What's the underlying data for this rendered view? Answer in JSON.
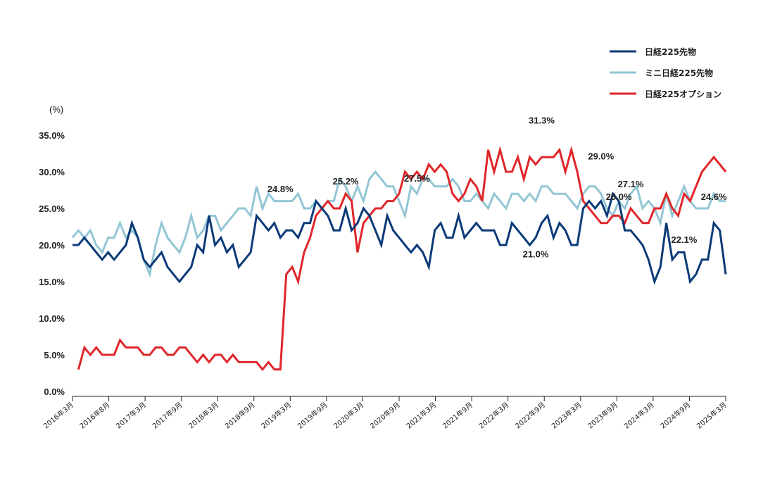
{
  "chart_data": {
    "type": "line",
    "ylabel": "(%)",
    "ylim": [
      0,
      35
    ],
    "y_ticks": [
      "0.0%",
      "5.0%",
      "10.0%",
      "15.0%",
      "20.0%",
      "25.0%",
      "30.0%",
      "35.0%"
    ],
    "x_ticks": [
      "2016年3月",
      "2016年8月",
      "2017年3月",
      "2017年9月",
      "2018年3月",
      "2018年9月",
      "2019年3月",
      "2019年9月",
      "2020年3月",
      "2020年9月",
      "2021年3月",
      "2021年9月",
      "2022年3月",
      "2022年9月",
      "2023年3月",
      "2023年9月",
      "2024年3月",
      "2024年9月",
      "2025年3月"
    ],
    "legend_position": "top-right",
    "grid": false,
    "series": [
      {
        "name": "日経225先物",
        "color": "#0b3a78",
        "values": [
          20,
          20,
          21,
          20,
          19,
          18,
          19,
          18,
          19,
          20,
          23,
          21,
          18,
          17,
          18,
          19,
          17,
          16,
          15,
          16,
          17,
          20,
          19,
          24,
          20,
          21,
          19,
          20,
          17,
          18,
          19,
          24,
          23,
          22,
          23,
          21,
          22,
          22,
          21,
          23,
          23,
          26,
          25,
          24,
          22,
          22,
          25,
          22,
          23,
          25,
          24,
          22,
          20,
          24,
          22,
          21,
          20,
          19,
          20,
          19,
          17,
          22,
          23,
          21,
          21,
          24,
          21,
          22,
          23,
          22,
          22,
          22,
          20,
          20,
          23,
          22,
          21,
          20,
          21,
          23,
          24,
          21,
          23,
          22,
          20,
          20,
          25,
          26,
          25,
          26,
          24,
          27,
          26,
          22,
          22,
          21,
          20,
          18,
          15,
          17,
          23,
          18,
          19,
          19,
          15,
          16,
          18,
          18,
          23,
          22,
          16
        ]
      },
      {
        "name": "ミニ日経225先物",
        "color": "#93c6d4",
        "values": [
          21,
          22,
          21,
          22,
          20,
          19,
          21,
          21,
          23,
          21,
          22,
          21,
          18,
          16,
          20,
          23,
          21,
          20,
          19,
          21,
          24,
          21,
          22,
          24,
          24,
          22,
          23,
          24,
          25,
          25,
          24,
          28,
          25,
          27,
          26,
          26,
          26,
          26,
          27,
          25,
          25,
          26,
          25,
          26,
          26,
          29,
          28,
          26,
          28,
          26,
          29,
          30,
          29,
          28,
          28,
          26,
          24,
          28,
          27,
          29,
          29,
          28,
          28,
          28,
          29,
          28,
          26,
          26,
          27,
          26,
          25,
          27,
          26,
          25,
          27,
          27,
          26,
          27,
          26,
          28,
          28,
          27,
          27,
          27,
          26,
          25,
          27,
          28,
          28,
          27,
          25,
          24,
          26,
          25,
          27,
          28,
          25,
          26,
          25,
          23,
          27,
          24,
          26,
          28,
          26,
          25,
          25,
          25,
          27,
          26,
          26
        ]
      },
      {
        "name": "日経225オプション",
        "color": "#e0262b",
        "values": [
          null,
          3,
          6,
          5,
          6,
          5,
          5,
          5,
          7,
          6,
          6,
          6,
          5,
          5,
          6,
          6,
          5,
          5,
          6,
          6,
          5,
          4,
          5,
          4,
          5,
          5,
          4,
          5,
          4,
          4,
          4,
          4,
          3,
          4,
          3,
          3,
          16,
          17,
          15,
          19,
          21,
          24,
          25,
          26,
          25,
          25,
          27,
          26,
          19,
          23,
          24,
          25,
          25,
          26,
          26,
          27,
          30,
          29,
          30,
          29,
          31,
          30,
          31,
          30,
          27,
          26,
          27,
          29,
          28,
          26,
          33,
          30,
          33,
          30,
          30,
          32,
          29,
          32,
          31,
          32,
          32,
          32,
          33,
          30,
          33,
          30,
          26,
          25,
          24,
          23,
          23,
          24,
          24,
          23,
          25,
          24,
          23,
          23,
          25,
          25,
          27,
          25,
          24,
          27,
          26,
          28,
          30,
          31,
          32,
          31,
          30
        ]
      }
    ],
    "annotations": [
      {
        "text": "24.8%",
        "x_index": 35,
        "y": 24.8
      },
      {
        "text": "25.2%",
        "x_index": 46,
        "y": 25.2
      },
      {
        "text": "27.5%",
        "x_index": 58,
        "y": 27.5
      },
      {
        "text": "31.3%",
        "x_index": 79,
        "y": 31.3
      },
      {
        "text": "21.0%",
        "x_index": 78,
        "y": 21.0
      },
      {
        "text": "29.0%",
        "x_index": 89,
        "y": 29.0
      },
      {
        "text": "27.1%",
        "x_index": 94,
        "y": 27.1
      },
      {
        "text": "25.0%",
        "x_index": 92,
        "y": 25.0
      },
      {
        "text": "24.6%",
        "x_index": 108,
        "y": 24.6
      },
      {
        "text": "22.1%",
        "x_index": 103,
        "y": 22.1
      }
    ]
  }
}
